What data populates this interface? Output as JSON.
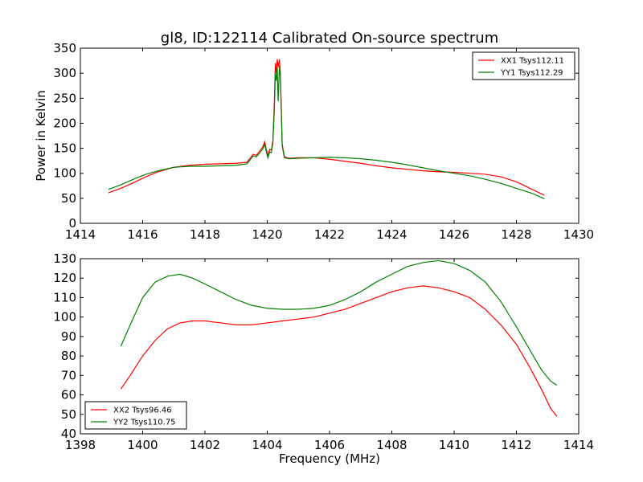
{
  "colors": {
    "red": "#ff0000",
    "green": "#008000"
  },
  "chart_data": [
    {
      "type": "line",
      "title": "gl8, ID:122114 Calibrated On-source spectrum",
      "xlabel": "",
      "ylabel": "Power in Kelvin",
      "xlim": [
        1414,
        1430
      ],
      "ylim": [
        0,
        350
      ],
      "xticks": [
        1414,
        1416,
        1418,
        1420,
        1422,
        1424,
        1426,
        1428,
        1430
      ],
      "yticks": [
        0,
        50,
        100,
        150,
        200,
        250,
        300,
        350
      ],
      "grid": false,
      "legend_position": "top-right",
      "series": [
        {
          "name": "XX1 Tsys112.11",
          "color": "#ff0000",
          "points": [
            [
              1414.9,
              61
            ],
            [
              1415.3,
              70
            ],
            [
              1415.7,
              81
            ],
            [
              1416.1,
              93
            ],
            [
              1416.5,
              103
            ],
            [
              1417.0,
              112
            ],
            [
              1417.5,
              116
            ],
            [
              1418.0,
              118
            ],
            [
              1418.5,
              119
            ],
            [
              1419.0,
              120
            ],
            [
              1419.35,
              122
            ],
            [
              1419.45,
              130
            ],
            [
              1419.55,
              138
            ],
            [
              1419.65,
              136
            ],
            [
              1419.75,
              144
            ],
            [
              1419.85,
              152
            ],
            [
              1419.92,
              163
            ],
            [
              1419.97,
              148
            ],
            [
              1420.02,
              135
            ],
            [
              1420.08,
              148
            ],
            [
              1420.13,
              146
            ],
            [
              1420.18,
              165
            ],
            [
              1420.23,
              245
            ],
            [
              1420.26,
              320
            ],
            [
              1420.29,
              300
            ],
            [
              1420.32,
              328
            ],
            [
              1420.35,
              312
            ],
            [
              1420.39,
              328
            ],
            [
              1420.42,
              300
            ],
            [
              1420.45,
              235
            ],
            [
              1420.48,
              158
            ],
            [
              1420.55,
              133
            ],
            [
              1420.7,
              130
            ],
            [
              1421.0,
              131
            ],
            [
              1421.5,
              131
            ],
            [
              1422.0,
              128
            ],
            [
              1422.5,
              124
            ],
            [
              1423.0,
              120
            ],
            [
              1423.5,
              115
            ],
            [
              1424.0,
              111
            ],
            [
              1424.5,
              108
            ],
            [
              1425.0,
              105
            ],
            [
              1425.5,
              103
            ],
            [
              1426.0,
              102
            ],
            [
              1426.5,
              100
            ],
            [
              1427.0,
              98
            ],
            [
              1427.5,
              93
            ],
            [
              1428.0,
              83
            ],
            [
              1428.5,
              68
            ],
            [
              1428.9,
              56
            ]
          ]
        },
        {
          "name": "YY1 Tsys112.29",
          "color": "#008000",
          "points": [
            [
              1414.9,
              68
            ],
            [
              1415.3,
              77
            ],
            [
              1415.7,
              88
            ],
            [
              1416.1,
              98
            ],
            [
              1416.5,
              105
            ],
            [
              1417.0,
              112
            ],
            [
              1417.5,
              114
            ],
            [
              1418.0,
              114
            ],
            [
              1418.5,
              115
            ],
            [
              1419.0,
              116
            ],
            [
              1419.35,
              119
            ],
            [
              1419.45,
              127
            ],
            [
              1419.55,
              135
            ],
            [
              1419.65,
              133
            ],
            [
              1419.75,
              140
            ],
            [
              1419.85,
              148
            ],
            [
              1419.92,
              158
            ],
            [
              1419.97,
              143
            ],
            [
              1420.02,
              131
            ],
            [
              1420.08,
              143
            ],
            [
              1420.13,
              141
            ],
            [
              1420.18,
              160
            ],
            [
              1420.23,
              230
            ],
            [
              1420.26,
              300
            ],
            [
              1420.29,
              285
            ],
            [
              1420.32,
              312
            ],
            [
              1420.35,
              244
            ],
            [
              1420.39,
              315
            ],
            [
              1420.42,
              295
            ],
            [
              1420.45,
              225
            ],
            [
              1420.48,
              155
            ],
            [
              1420.55,
              131
            ],
            [
              1420.7,
              129
            ],
            [
              1421.0,
              130
            ],
            [
              1421.5,
              131
            ],
            [
              1422.0,
              132
            ],
            [
              1422.5,
              131
            ],
            [
              1423.0,
              129
            ],
            [
              1423.5,
              126
            ],
            [
              1424.0,
              122
            ],
            [
              1424.5,
              117
            ],
            [
              1425.0,
              111
            ],
            [
              1425.5,
              105
            ],
            [
              1426.0,
              100
            ],
            [
              1426.5,
              95
            ],
            [
              1427.0,
              88
            ],
            [
              1427.5,
              80
            ],
            [
              1428.0,
              70
            ],
            [
              1428.5,
              60
            ],
            [
              1428.9,
              49
            ]
          ]
        }
      ]
    },
    {
      "type": "line",
      "title": "",
      "xlabel": "Frequency (MHz)",
      "ylabel": "",
      "xlim": [
        1398,
        1414
      ],
      "ylim": [
        40,
        130
      ],
      "xticks": [
        1398,
        1400,
        1402,
        1404,
        1406,
        1408,
        1410,
        1412,
        1414
      ],
      "yticks": [
        40,
        50,
        60,
        70,
        80,
        90,
        100,
        110,
        120,
        130
      ],
      "grid": false,
      "legend_position": "bottom-left",
      "series": [
        {
          "name": "XX2 Tsys96.46",
          "color": "#ff0000",
          "points": [
            [
              1399.3,
              63
            ],
            [
              1399.6,
              70
            ],
            [
              1400.0,
              80
            ],
            [
              1400.4,
              88
            ],
            [
              1400.8,
              94
            ],
            [
              1401.2,
              97
            ],
            [
              1401.6,
              98
            ],
            [
              1402.0,
              98
            ],
            [
              1402.5,
              97
            ],
            [
              1403.0,
              96
            ],
            [
              1403.5,
              96
            ],
            [
              1404.0,
              97
            ],
            [
              1404.5,
              98
            ],
            [
              1405.0,
              99
            ],
            [
              1405.5,
              100
            ],
            [
              1406.0,
              102
            ],
            [
              1406.5,
              104
            ],
            [
              1407.0,
              107
            ],
            [
              1407.5,
              110
            ],
            [
              1408.0,
              113
            ],
            [
              1408.5,
              115
            ],
            [
              1409.0,
              116
            ],
            [
              1409.5,
              115
            ],
            [
              1410.0,
              113
            ],
            [
              1410.5,
              110
            ],
            [
              1411.0,
              104
            ],
            [
              1411.5,
              96
            ],
            [
              1412.0,
              86
            ],
            [
              1412.4,
              75
            ],
            [
              1412.8,
              63
            ],
            [
              1413.1,
              53
            ],
            [
              1413.3,
              49
            ]
          ]
        },
        {
          "name": "YY2 Tsys110.75",
          "color": "#008000",
          "points": [
            [
              1399.3,
              85
            ],
            [
              1399.6,
              96
            ],
            [
              1400.0,
              110
            ],
            [
              1400.4,
              118
            ],
            [
              1400.8,
              121
            ],
            [
              1401.2,
              122
            ],
            [
              1401.6,
              120
            ],
            [
              1402.0,
              117
            ],
            [
              1402.5,
              113
            ],
            [
              1403.0,
              109
            ],
            [
              1403.5,
              106
            ],
            [
              1404.0,
              104.5
            ],
            [
              1404.5,
              104
            ],
            [
              1405.0,
              104
            ],
            [
              1405.5,
              104.5
            ],
            [
              1406.0,
              106
            ],
            [
              1406.5,
              109
            ],
            [
              1407.0,
              113
            ],
            [
              1407.5,
              118
            ],
            [
              1408.0,
              122
            ],
            [
              1408.5,
              126
            ],
            [
              1409.0,
              128
            ],
            [
              1409.5,
              129
            ],
            [
              1410.0,
              127.5
            ],
            [
              1410.5,
              124
            ],
            [
              1411.0,
              118
            ],
            [
              1411.5,
              108
            ],
            [
              1412.0,
              95
            ],
            [
              1412.4,
              84
            ],
            [
              1412.8,
              73
            ],
            [
              1413.1,
              67
            ],
            [
              1413.3,
              65
            ]
          ]
        }
      ]
    }
  ]
}
